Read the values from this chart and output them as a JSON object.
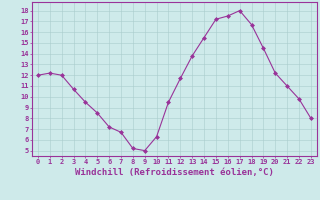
{
  "x": [
    0,
    1,
    2,
    3,
    4,
    5,
    6,
    7,
    8,
    9,
    10,
    11,
    12,
    13,
    14,
    15,
    16,
    17,
    18,
    19,
    20,
    21,
    22,
    23
  ],
  "y": [
    12,
    12.2,
    12,
    10.7,
    9.5,
    8.5,
    7.2,
    6.7,
    5.2,
    5.0,
    6.3,
    9.5,
    11.7,
    13.8,
    15.5,
    17.2,
    17.5,
    18.0,
    16.7,
    14.5,
    12.2,
    11.0,
    9.8,
    8.0
  ],
  "line_color": "#993399",
  "marker": "D",
  "marker_size": 2.0,
  "bg_color": "#ceeaea",
  "grid_color": "#aacccc",
  "xlabel": "Windchill (Refroidissement éolien,°C)",
  "xlim": [
    -0.5,
    23.5
  ],
  "ylim": [
    4.5,
    18.8
  ],
  "yticks": [
    5,
    6,
    7,
    8,
    9,
    10,
    11,
    12,
    13,
    14,
    15,
    16,
    17,
    18
  ],
  "xticks": [
    0,
    1,
    2,
    3,
    4,
    5,
    6,
    7,
    8,
    9,
    10,
    11,
    12,
    13,
    14,
    15,
    16,
    17,
    18,
    19,
    20,
    21,
    22,
    23
  ],
  "tick_color": "#993399",
  "label_color": "#993399",
  "tick_fontsize": 5.0,
  "xlabel_fontsize": 6.5,
  "spine_color": "#993399"
}
